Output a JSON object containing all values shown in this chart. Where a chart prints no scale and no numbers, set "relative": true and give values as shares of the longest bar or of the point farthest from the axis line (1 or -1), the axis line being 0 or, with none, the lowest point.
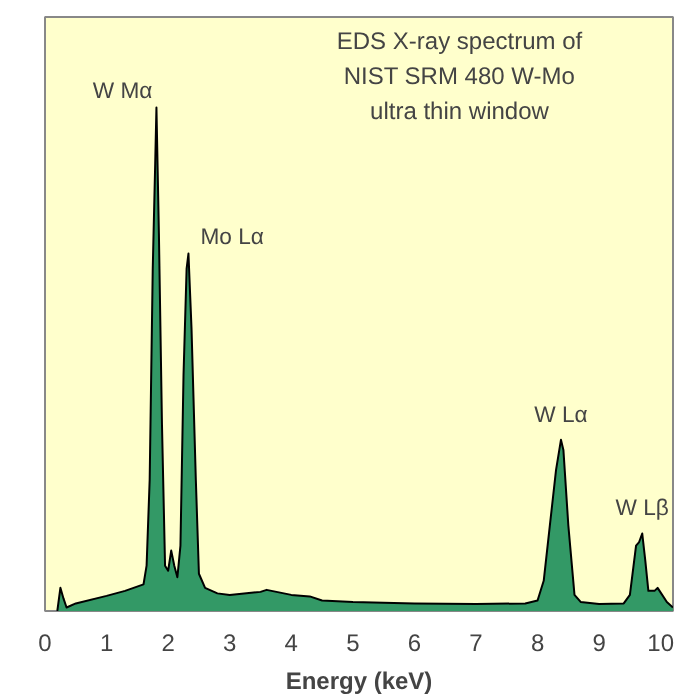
{
  "chart_data": {
    "type": "area",
    "title": "EDS X-ray spectrum of\nNIST SRM 480 W-Mo\nultra thin window",
    "xlabel": "Energy (keV)",
    "relative": true,
    "grid": false,
    "xlim": [
      0,
      10.2
    ],
    "xticks": [
      0,
      1,
      2,
      3,
      4,
      5,
      6,
      7,
      8,
      9,
      10
    ],
    "x": [
      0.2,
      0.25,
      0.3,
      0.35,
      0.5,
      1.0,
      1.3,
      1.6,
      1.65,
      1.7,
      1.75,
      1.79,
      1.81,
      1.85,
      1.9,
      1.95,
      2.0,
      2.05,
      2.1,
      2.15,
      2.2,
      2.25,
      2.3,
      2.33,
      2.38,
      2.45,
      2.5,
      2.6,
      2.8,
      3.0,
      3.5,
      3.6,
      4.0,
      4.3,
      4.5,
      5.0,
      6.0,
      7.0,
      7.8,
      8.0,
      8.1,
      8.2,
      8.3,
      8.38,
      8.42,
      8.5,
      8.6,
      8.7,
      9.0,
      9.4,
      9.5,
      9.6,
      9.65,
      9.7,
      9.75,
      9.8,
      9.9,
      9.95,
      10.1,
      10.2
    ],
    "series": [
      {
        "color": "#339966",
        "values": [
          0,
          0.046,
          0.025,
          0.007,
          0.015,
          0.03,
          0.04,
          0.053,
          0.09,
          0.26,
          0.68,
          0.89,
          1.0,
          0.75,
          0.37,
          0.09,
          0.08,
          0.12,
          0.09,
          0.067,
          0.13,
          0.47,
          0.68,
          0.71,
          0.56,
          0.26,
          0.074,
          0.046,
          0.035,
          0.032,
          0.038,
          0.042,
          0.032,
          0.029,
          0.021,
          0.018,
          0.015,
          0.014,
          0.015,
          0.021,
          0.06,
          0.17,
          0.28,
          0.34,
          0.32,
          0.17,
          0.032,
          0.018,
          0.014,
          0.015,
          0.032,
          0.13,
          0.137,
          0.154,
          0.1,
          0.04,
          0.04,
          0.046,
          0.018,
          0.007
        ]
      }
    ],
    "annotations": [
      {
        "text": "W Mα",
        "x": 1.81,
        "y": 1.0
      },
      {
        "text": "Mo Lα",
        "x": 2.33,
        "y": 0.71
      },
      {
        "text": "W Lα",
        "x": 8.38,
        "y": 0.34
      },
      {
        "text": "W Lβ",
        "x": 9.7,
        "y": 0.154
      }
    ]
  }
}
